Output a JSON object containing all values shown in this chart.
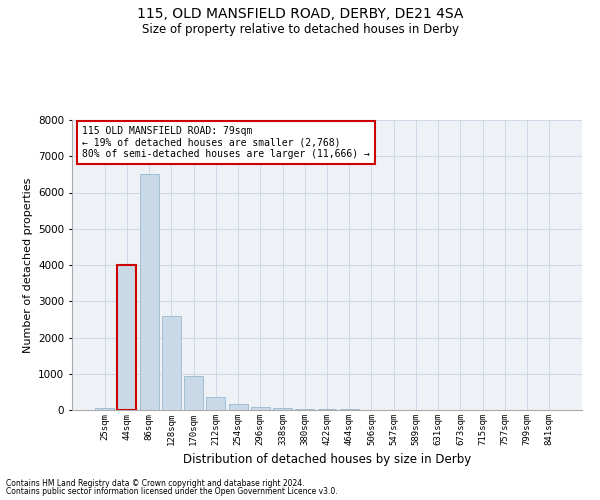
{
  "title": "115, OLD MANSFIELD ROAD, DERBY, DE21 4SA",
  "subtitle": "Size of property relative to detached houses in Derby",
  "xlabel": "Distribution of detached houses by size in Derby",
  "ylabel": "Number of detached properties",
  "footnote1": "Contains HM Land Registry data © Crown copyright and database right 2024.",
  "footnote2": "Contains public sector information licensed under the Open Government Licence v3.0.",
  "annotation_line1": "115 OLD MANSFIELD ROAD: 79sqm",
  "annotation_line2": "← 19% of detached houses are smaller (2,768)",
  "annotation_line3": "80% of semi-detached houses are larger (11,666) →",
  "bar_color": "#c9d9e8",
  "bar_edge_color": "#8aafc8",
  "highlight_bar_index": 1,
  "highlight_edge_color": "#cc0000",
  "annotation_box_edge_color": "#cc0000",
  "grid_color": "#c8d4e3",
  "background_color": "#eef2f7",
  "categories": [
    "25sqm",
    "44sqm",
    "86sqm",
    "128sqm",
    "170sqm",
    "212sqm",
    "254sqm",
    "296sqm",
    "338sqm",
    "380sqm",
    "422sqm",
    "464sqm",
    "506sqm",
    "547sqm",
    "589sqm",
    "631sqm",
    "673sqm",
    "715sqm",
    "757sqm",
    "799sqm",
    "841sqm"
  ],
  "values": [
    50,
    4000,
    6500,
    2600,
    950,
    370,
    160,
    90,
    50,
    40,
    30,
    20,
    10,
    5,
    3,
    2,
    1,
    1,
    1,
    1,
    1
  ],
  "ylim": [
    0,
    8000
  ],
  "yticks": [
    0,
    1000,
    2000,
    3000,
    4000,
    5000,
    6000,
    7000,
    8000
  ]
}
